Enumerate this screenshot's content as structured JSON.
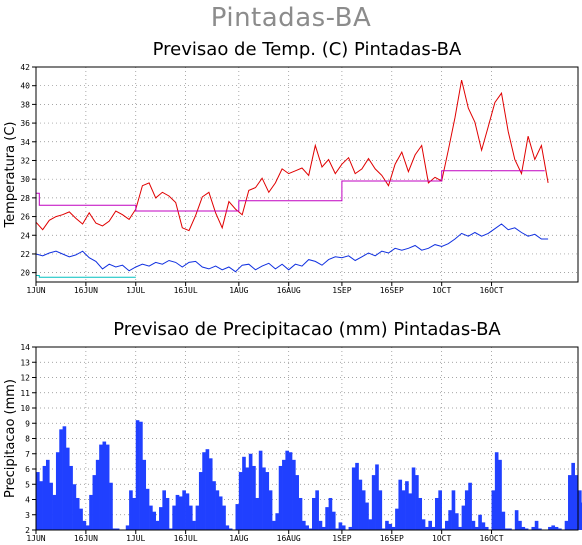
{
  "page_title": "Pintadas-BA",
  "chart_data": [
    {
      "type": "line",
      "title": "Previsao de Temp. (C) Pintadas-BA",
      "ylabel": "Temperatura (C)",
      "xlabel": "",
      "ylim": [
        19,
        42
      ],
      "yticks": [
        20,
        22,
        24,
        26,
        28,
        30,
        32,
        34,
        36,
        38,
        40,
        42
      ],
      "xlim": [
        0,
        163
      ],
      "xticks": [
        {
          "label": "1JUN",
          "day": 0
        },
        {
          "label": "16JUN",
          "day": 15
        },
        {
          "label": "1JUL",
          "day": 30
        },
        {
          "label": "16JUL",
          "day": 45
        },
        {
          "label": "1AUG",
          "day": 61
        },
        {
          "label": "16AUG",
          "day": 76
        },
        {
          "label": "1SEP",
          "day": 92
        },
        {
          "label": "16SEP",
          "day": 107
        },
        {
          "label": "1OCT",
          "day": 122
        },
        {
          "label": "16OCT",
          "day": 137
        }
      ],
      "grid": true,
      "series": [
        {
          "color": "#e00000",
          "values": [
            [
              0,
              25.4
            ],
            [
              2,
              24.6
            ],
            [
              4,
              25.6
            ],
            [
              6,
              26.0
            ],
            [
              8,
              26.2
            ],
            [
              10,
              26.5
            ],
            [
              12,
              25.8
            ],
            [
              14,
              25.2
            ],
            [
              16,
              26.4
            ],
            [
              18,
              25.3
            ],
            [
              20,
              25.0
            ],
            [
              22,
              25.5
            ],
            [
              24,
              26.6
            ],
            [
              26,
              26.2
            ],
            [
              28,
              25.7
            ],
            [
              30,
              26.8
            ],
            [
              32,
              29.3
            ],
            [
              34,
              29.6
            ],
            [
              36,
              28.0
            ],
            [
              38,
              28.6
            ],
            [
              40,
              28.2
            ],
            [
              42,
              27.5
            ],
            [
              44,
              24.8
            ],
            [
              46,
              24.5
            ],
            [
              48,
              26.1
            ],
            [
              50,
              28.1
            ],
            [
              52,
              28.6
            ],
            [
              54,
              26.4
            ],
            [
              56,
              24.8
            ],
            [
              58,
              27.6
            ],
            [
              60,
              26.8
            ],
            [
              62,
              26.2
            ],
            [
              64,
              28.8
            ],
            [
              66,
              29.1
            ],
            [
              68,
              30.1
            ],
            [
              70,
              28.6
            ],
            [
              72,
              29.6
            ],
            [
              74,
              31.1
            ],
            [
              76,
              30.6
            ],
            [
              78,
              30.9
            ],
            [
              80,
              31.2
            ],
            [
              82,
              30.4
            ],
            [
              84,
              33.6
            ],
            [
              86,
              31.3
            ],
            [
              88,
              32.1
            ],
            [
              90,
              30.6
            ],
            [
              92,
              31.6
            ],
            [
              94,
              32.3
            ],
            [
              96,
              30.6
            ],
            [
              98,
              31.1
            ],
            [
              100,
              32.2
            ],
            [
              102,
              31.1
            ],
            [
              104,
              30.4
            ],
            [
              106,
              29.3
            ],
            [
              108,
              31.6
            ],
            [
              110,
              32.9
            ],
            [
              112,
              30.8
            ],
            [
              114,
              32.6
            ],
            [
              116,
              33.6
            ],
            [
              118,
              29.6
            ],
            [
              120,
              30.2
            ],
            [
              122,
              29.8
            ],
            [
              124,
              33.1
            ],
            [
              126,
              36.6
            ],
            [
              128,
              40.6
            ],
            [
              130,
              37.6
            ],
            [
              132,
              36.1
            ],
            [
              134,
              33.1
            ],
            [
              136,
              35.6
            ],
            [
              138,
              38.2
            ],
            [
              140,
              39.2
            ],
            [
              142,
              35.1
            ],
            [
              144,
              32.1
            ],
            [
              146,
              30.6
            ],
            [
              148,
              34.6
            ],
            [
              150,
              32.1
            ],
            [
              152,
              33.6
            ],
            [
              154,
              29.6
            ]
          ]
        },
        {
          "color": "#1030e0",
          "values": [
            [
              0,
              22.0
            ],
            [
              2,
              21.8
            ],
            [
              4,
              22.1
            ],
            [
              6,
              22.3
            ],
            [
              8,
              22.0
            ],
            [
              10,
              21.7
            ],
            [
              12,
              21.9
            ],
            [
              14,
              22.3
            ],
            [
              16,
              21.6
            ],
            [
              18,
              21.2
            ],
            [
              20,
              20.4
            ],
            [
              22,
              20.9
            ],
            [
              24,
              20.6
            ],
            [
              26,
              20.8
            ],
            [
              28,
              20.2
            ],
            [
              30,
              20.6
            ],
            [
              32,
              20.9
            ],
            [
              34,
              20.7
            ],
            [
              36,
              21.1
            ],
            [
              38,
              20.9
            ],
            [
              40,
              21.3
            ],
            [
              42,
              21.1
            ],
            [
              44,
              20.6
            ],
            [
              46,
              21.1
            ],
            [
              48,
              21.2
            ],
            [
              50,
              20.6
            ],
            [
              52,
              20.4
            ],
            [
              54,
              20.7
            ],
            [
              56,
              20.3
            ],
            [
              58,
              20.6
            ],
            [
              60,
              20.1
            ],
            [
              62,
              20.8
            ],
            [
              64,
              20.9
            ],
            [
              66,
              20.3
            ],
            [
              68,
              20.7
            ],
            [
              70,
              21.0
            ],
            [
              72,
              20.4
            ],
            [
              74,
              20.9
            ],
            [
              76,
              20.3
            ],
            [
              78,
              20.9
            ],
            [
              80,
              20.7
            ],
            [
              82,
              21.4
            ],
            [
              84,
              21.2
            ],
            [
              86,
              20.8
            ],
            [
              88,
              21.4
            ],
            [
              90,
              21.7
            ],
            [
              92,
              21.6
            ],
            [
              94,
              21.8
            ],
            [
              96,
              21.3
            ],
            [
              98,
              21.7
            ],
            [
              100,
              22.1
            ],
            [
              102,
              21.8
            ],
            [
              104,
              22.3
            ],
            [
              106,
              22.1
            ],
            [
              108,
              22.6
            ],
            [
              110,
              22.4
            ],
            [
              112,
              22.6
            ],
            [
              114,
              22.9
            ],
            [
              116,
              22.4
            ],
            [
              118,
              22.6
            ],
            [
              120,
              23.0
            ],
            [
              122,
              22.8
            ],
            [
              124,
              23.1
            ],
            [
              126,
              23.6
            ],
            [
              128,
              24.2
            ],
            [
              130,
              23.9
            ],
            [
              132,
              24.3
            ],
            [
              134,
              23.9
            ],
            [
              136,
              24.2
            ],
            [
              138,
              24.7
            ],
            [
              140,
              25.2
            ],
            [
              142,
              24.6
            ],
            [
              144,
              24.8
            ],
            [
              146,
              24.3
            ],
            [
              148,
              23.9
            ],
            [
              150,
              24.1
            ],
            [
              152,
              23.6
            ],
            [
              154,
              23.6
            ]
          ]
        },
        {
          "color": "#c000c0",
          "values": [
            [
              0,
              28.5
            ],
            [
              1,
              28.5
            ],
            [
              1,
              27.2
            ],
            [
              30,
              27.2
            ],
            [
              30,
              26.6
            ],
            [
              61,
              26.6
            ],
            [
              61,
              27.7
            ],
            [
              92,
              27.7
            ],
            [
              92,
              29.8
            ],
            [
              122,
              29.8
            ],
            [
              122,
              30.9
            ],
            [
              153,
              30.9
            ]
          ]
        },
        {
          "color": "#00c0c0",
          "values": [
            [
              0,
              19.7
            ],
            [
              1,
              19.7
            ],
            [
              1,
              19.5
            ],
            [
              30,
              19.5
            ]
          ]
        }
      ]
    },
    {
      "type": "bar",
      "title": "Previsao de Precipitacao (mm) Pintadas-BA",
      "ylabel": "Precipitacao (mm)",
      "xlabel": "",
      "ylim": [
        2,
        14
      ],
      "yticks": [
        2,
        3,
        4,
        5,
        6,
        7,
        8,
        9,
        10,
        11,
        12,
        13,
        14
      ],
      "xlim": [
        0,
        163
      ],
      "xticks": [
        {
          "label": "1JUN",
          "day": 0
        },
        {
          "label": "16JUN",
          "day": 15
        },
        {
          "label": "1JUL",
          "day": 30
        },
        {
          "label": "16JUL",
          "day": 45
        },
        {
          "label": "1AUG",
          "day": 61
        },
        {
          "label": "16AUG",
          "day": 76
        },
        {
          "label": "1SEP",
          "day": 92
        },
        {
          "label": "16SEP",
          "day": 107
        },
        {
          "label": "1OCT",
          "day": 122
        },
        {
          "label": "16OCT",
          "day": 137
        }
      ],
      "grid": true,
      "color": "#2040ff",
      "values": [
        5.8,
        5.2,
        6.2,
        6.6,
        5.1,
        4.3,
        7.1,
        8.6,
        8.8,
        7.4,
        6.2,
        5.0,
        4.1,
        3.4,
        2.6,
        2.3,
        4.3,
        5.6,
        6.6,
        7.6,
        7.8,
        7.6,
        5.1,
        2.1,
        2.1,
        2.0,
        2.0,
        2.3,
        4.6,
        4.1,
        9.2,
        9.1,
        6.6,
        4.7,
        3.6,
        3.2,
        2.6,
        3.5,
        4.6,
        4.1,
        2.1,
        3.6,
        4.3,
        4.2,
        4.6,
        4.4,
        3.6,
        2.6,
        3.6,
        5.8,
        7.1,
        7.3,
        6.7,
        5.2,
        4.6,
        4.2,
        3.6,
        2.3,
        2.1,
        2.0,
        3.7,
        5.8,
        6.8,
        6.1,
        7.0,
        6.2,
        4.1,
        7.2,
        6.1,
        5.8,
        4.6,
        2.6,
        3.1,
        6.2,
        6.6,
        7.2,
        7.1,
        6.6,
        5.6,
        4.1,
        2.6,
        2.3,
        2.1,
        4.1,
        4.6,
        2.6,
        2.2,
        3.5,
        4.1,
        3.2,
        2.1,
        2.5,
        2.3,
        2.0,
        2.2,
        6.1,
        6.4,
        5.3,
        4.6,
        3.8,
        2.7,
        5.6,
        6.3,
        4.6,
        2.1,
        2.6,
        2.4,
        2.2,
        3.4,
        5.3,
        4.6,
        5.2,
        4.4,
        6.1,
        5.6,
        4.1,
        2.7,
        2.2,
        2.6,
        2.2,
        4.1,
        4.6,
        2.1,
        2.6,
        3.3,
        4.6,
        3.1,
        2.2,
        3.6,
        4.6,
        5.1,
        2.6,
        2.2,
        3.0,
        2.5,
        2.2,
        2.0,
        4.6,
        7.1,
        6.6,
        3.2,
        2.1,
        2.1,
        2.0,
        3.3,
        2.6,
        2.2,
        2.1,
        2.0,
        2.2,
        2.6,
        2.1,
        2.0,
        2.0,
        2.2,
        2.3,
        2.2,
        2.1,
        2.0,
        2.6,
        5.6,
        6.4,
        5.6,
        4.6,
        3.8,
        5.1,
        5.6,
        4.1,
        3.6,
        2.6,
        4.1,
        5.3,
        4.6,
        5.8,
        6.1
      ]
    }
  ]
}
